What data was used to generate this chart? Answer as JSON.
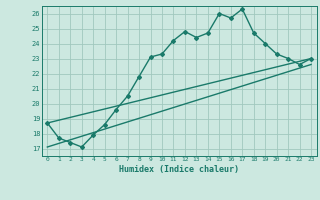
{
  "xlabel": "Humidex (Indice chaleur)",
  "ylabel": "",
  "xlim": [
    -0.5,
    23.5
  ],
  "ylim": [
    16.5,
    26.5
  ],
  "yticks": [
    17,
    18,
    19,
    20,
    21,
    22,
    23,
    24,
    25,
    26
  ],
  "xticks": [
    0,
    1,
    2,
    3,
    4,
    5,
    6,
    7,
    8,
    9,
    10,
    11,
    12,
    13,
    14,
    15,
    16,
    17,
    18,
    19,
    20,
    21,
    22,
    23
  ],
  "background_color": "#cce8e0",
  "grid_color": "#a0c8be",
  "line_color": "#1a7a6a",
  "line_width": 1.0,
  "marker": "D",
  "marker_size": 2.0,
  "curve_x": [
    0,
    1,
    2,
    3,
    4,
    5,
    6,
    7,
    8,
    9,
    10,
    11,
    12,
    13,
    14,
    15,
    16,
    17,
    18,
    19,
    20,
    21,
    22,
    23
  ],
  "curve_y": [
    18.7,
    17.7,
    17.4,
    17.1,
    17.9,
    18.6,
    19.6,
    20.5,
    21.8,
    23.1,
    23.3,
    24.2,
    24.8,
    24.4,
    24.7,
    26.0,
    25.7,
    26.3,
    24.7,
    24.0,
    23.3,
    23.0,
    22.6,
    23.0
  ],
  "line1_x": [
    0,
    23
  ],
  "line1_y": [
    18.7,
    23.0
  ],
  "line2_x": [
    0,
    23
  ],
  "line2_y": [
    17.1,
    22.6
  ]
}
